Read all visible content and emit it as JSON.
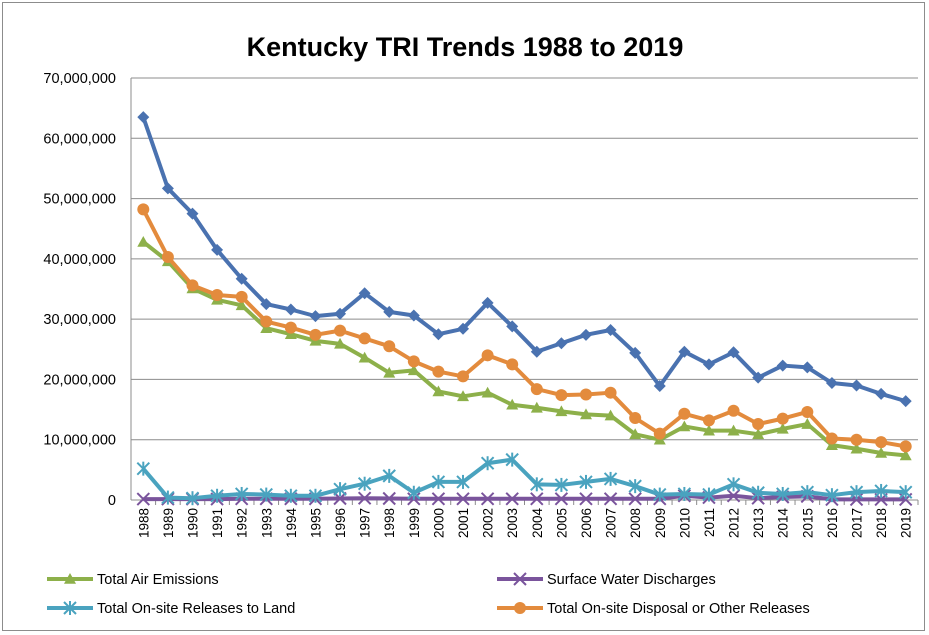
{
  "chart_data": {
    "type": "line",
    "title": "Kentucky TRI Trends 1988 to 2019",
    "xlabel": "",
    "ylabel": "",
    "ylim": [
      0,
      70000000
    ],
    "yticks": [
      0,
      10000000,
      20000000,
      30000000,
      40000000,
      50000000,
      60000000,
      70000000
    ],
    "ytick_labels": [
      "0",
      "10,000,000",
      "20,000,000",
      "30,000,000",
      "40,000,000",
      "50,000,000",
      "60,000,000",
      "70,000,000"
    ],
    "grid": true,
    "legend_position": "bottom",
    "categories": [
      "1988",
      "1989",
      "1990",
      "1991",
      "1992",
      "1993",
      "1994",
      "1995",
      "1996",
      "1997",
      "1998",
      "1999",
      "2000",
      "2001",
      "2002",
      "2003",
      "2004",
      "2005",
      "2006",
      "2007",
      "2008",
      "2009",
      "2010",
      "2011",
      "2012",
      "2013",
      "2014",
      "2015",
      "2016",
      "2017",
      "2018",
      "2019"
    ],
    "series": [
      {
        "key": "total",
        "color": "#4a72b0",
        "marker": "diamond",
        "values": [
          63500000,
          51700000,
          47500000,
          41500000,
          36700000,
          32500000,
          31600000,
          30500000,
          30900000,
          34300000,
          31200000,
          30600000,
          27500000,
          28400000,
          32700000,
          28800000,
          24600000,
          26000000,
          27400000,
          28200000,
          24400000,
          18900000,
          24600000,
          22500000,
          24500000,
          20300000,
          22300000,
          22000000,
          19400000,
          19000000,
          17600000,
          16400000
        ]
      },
      {
        "key": "disposal",
        "name": "Total On-site Disposal or Other Releases",
        "color": "#e38b3d",
        "marker": "circle",
        "values": [
          48200000,
          40300000,
          35600000,
          34000000,
          33700000,
          29600000,
          28600000,
          27400000,
          28100000,
          26800000,
          25500000,
          23000000,
          21300000,
          20500000,
          24000000,
          22500000,
          18400000,
          17400000,
          17500000,
          17800000,
          13600000,
          11000000,
          14300000,
          13200000,
          14800000,
          12600000,
          13500000,
          14600000,
          10200000,
          10000000,
          9600000,
          8900000
        ]
      },
      {
        "key": "air",
        "name": "Total Air Emissions",
        "color": "#8db04a",
        "marker": "triangle",
        "values": [
          42800000,
          39600000,
          35100000,
          33200000,
          32300000,
          28500000,
          27500000,
          26400000,
          25900000,
          23600000,
          21100000,
          21500000,
          18000000,
          17200000,
          17800000,
          15800000,
          15300000,
          14700000,
          14200000,
          14000000,
          10900000,
          10000000,
          12200000,
          11500000,
          11500000,
          10900000,
          11800000,
          12600000,
          9100000,
          8500000,
          7800000,
          7400000
        ]
      },
      {
        "key": "land",
        "name": "Total On-site Releases to Land",
        "color": "#4aa3bf",
        "marker": "star",
        "values": [
          5200000,
          400000,
          300000,
          700000,
          1000000,
          900000,
          700000,
          700000,
          1800000,
          2700000,
          4000000,
          1200000,
          3000000,
          3000000,
          6100000,
          6700000,
          2600000,
          2500000,
          3000000,
          3500000,
          2300000,
          900000,
          1000000,
          900000,
          2600000,
          1200000,
          1000000,
          1300000,
          800000,
          1300000,
          1500000,
          1300000
        ]
      },
      {
        "key": "water",
        "name": "Surface Water Discharges",
        "color": "#7a549c",
        "marker": "x",
        "values": [
          150000,
          150000,
          150000,
          150000,
          200000,
          200000,
          200000,
          200000,
          250000,
          300000,
          250000,
          200000,
          200000,
          200000,
          200000,
          200000,
          200000,
          200000,
          200000,
          200000,
          200000,
          200000,
          700000,
          400000,
          700000,
          300000,
          500000,
          600000,
          100000,
          100000,
          100000,
          100000
        ]
      }
    ],
    "legend": [
      {
        "series": "air",
        "label": "Total Air Emissions"
      },
      {
        "series": "water",
        "label": "Surface Water Discharges"
      },
      {
        "series": "land",
        "label": "Total On-site Releases to Land"
      },
      {
        "series": "disposal",
        "label": "Total On-site Disposal or Other Releases"
      }
    ]
  }
}
